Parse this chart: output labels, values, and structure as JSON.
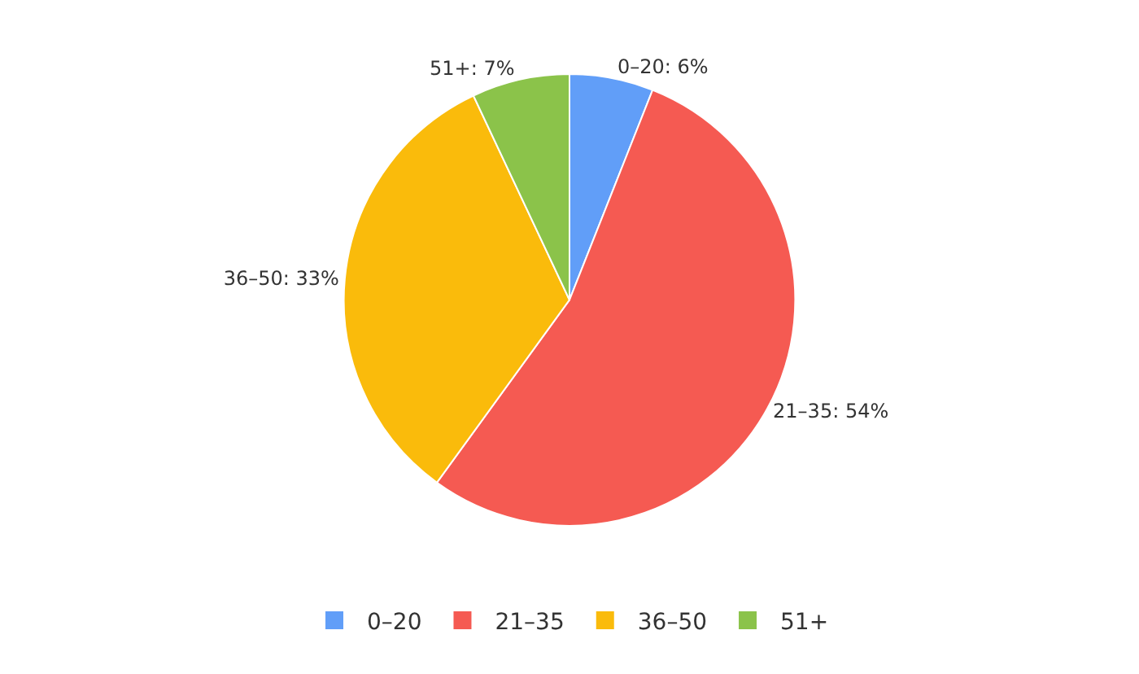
{
  "chart_data": {
    "type": "pie",
    "categories": [
      "0–20",
      "21–35",
      "36–50",
      "51+"
    ],
    "values": [
      6,
      54,
      33,
      7
    ],
    "colors": [
      "#619ef8",
      "#f55a52",
      "#fabb0b",
      "#8bc34a"
    ],
    "value_labels": [
      "0–20: 6%",
      "21–35: 54%",
      "36–50: 33%",
      "51+: 7%"
    ],
    "legend": "bottom"
  }
}
